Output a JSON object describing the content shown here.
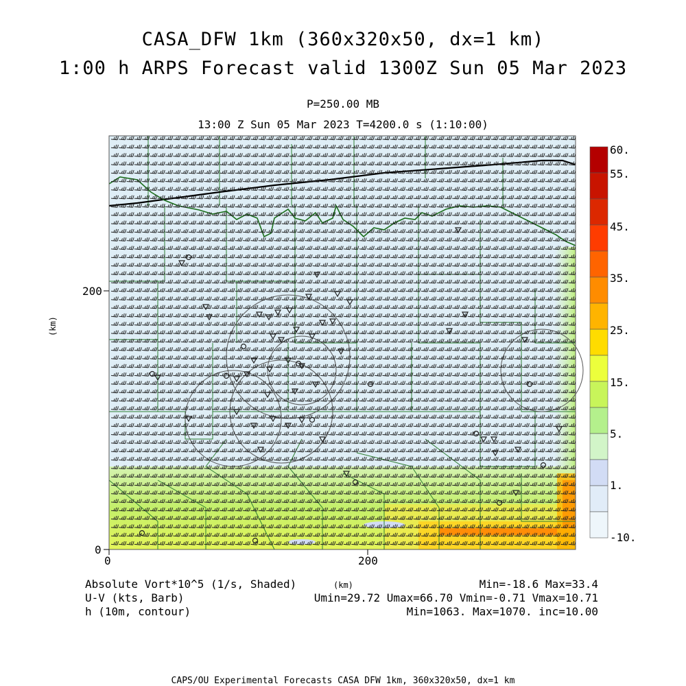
{
  "header": {
    "title_line1": "CASA_DFW 1km (360x320x50, dx=1 km)",
    "title_line2": "1:00 h ARPS Forecast valid 1300Z Sun 05 Mar 2023",
    "pressure_level": "P=250.00 MB",
    "valid_time": "13:00 Z Sun 05 Mar 2023    T=4200.0 s (1:10:00)"
  },
  "axes": {
    "x_ticks": [
      "0",
      "200"
    ],
    "y_ticks": [
      "0",
      "200"
    ],
    "x_unit": "(km)",
    "y_unit": "(km)"
  },
  "colorbar": {
    "labels": [
      "60.",
      "55.",
      "45.",
      "35.",
      "25.",
      "15.",
      "5.",
      "1.",
      "-10."
    ],
    "colors": [
      "#b40000",
      "#c81400",
      "#dc2800",
      "#ff3c00",
      "#ff6400",
      "#ff8c00",
      "#ffb400",
      "#ffdc00",
      "#ecff3c",
      "#c8f55a",
      "#b4f08c",
      "#d2f5c8",
      "#d2dcf5",
      "#e1ecf8",
      "#eef6fb"
    ]
  },
  "legend": {
    "field1": "Absolute Vort*10^5 (1/s, Shaded)",
    "field2": "U-V (kts, Barb)",
    "field3": "h (10m, contour)",
    "stats1": "Min=-18.6 Max=33.4",
    "stats2": "Umin=29.72 Umax=66.70 Vmin=-0.71 Vmax=10.71",
    "stats3": "Min=1063. Max=1070. inc=10.00",
    "x_unit_label": "(km)"
  },
  "footer": "CAPS/OU Experimental Forecasts  CASA DFW 1km, 360x320x50, dx=1 km"
}
